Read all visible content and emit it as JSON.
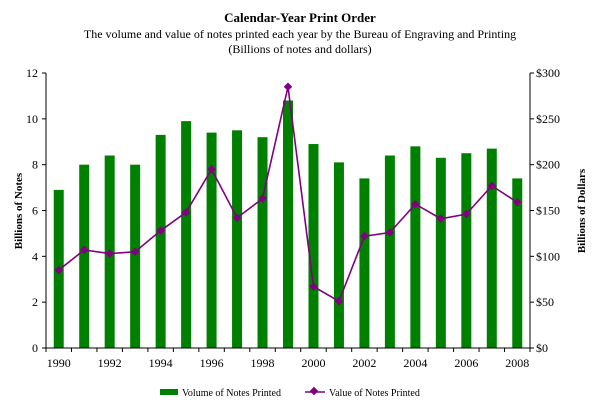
{
  "chart_data": {
    "type": "bar+line",
    "title": "Calendar-Year Print Order",
    "subtitle_lines": [
      "The volume and value of notes printed each year by the Bureau of Engraving and Printing",
      "(Billions of notes and dollars)"
    ],
    "ylabel_left": "Billions of Notes",
    "ylabel_right": "Billions of Dollars",
    "ylim_left": [
      0,
      12
    ],
    "ylim_right": [
      0,
      300
    ],
    "yticks_left": [
      "0",
      "2",
      "4",
      "6",
      "8",
      "10",
      "12"
    ],
    "yticks_right": [
      "$0",
      "$50",
      "$100",
      "$150",
      "$200",
      "$250",
      "$300"
    ],
    "x": [
      1990,
      1991,
      1992,
      1993,
      1994,
      1995,
      1996,
      1997,
      1998,
      1999,
      2000,
      2001,
      2002,
      2003,
      2004,
      2005,
      2006,
      2007,
      2008
    ],
    "xtick_labels": [
      "1990",
      "1992",
      "1994",
      "1996",
      "1998",
      "2000",
      "2002",
      "2004",
      "2006",
      "2008"
    ],
    "grid": false,
    "legend_position": "bottom",
    "series": [
      {
        "name": "Volume of Notes Printed",
        "kind": "bar",
        "axis": "left",
        "color": "#008000",
        "values": [
          6.9,
          8.0,
          8.4,
          8.0,
          9.3,
          9.9,
          9.4,
          9.5,
          9.2,
          10.8,
          8.9,
          8.1,
          7.4,
          8.4,
          8.8,
          8.3,
          8.5,
          8.7,
          7.4
        ]
      },
      {
        "name": "Value of Notes Printed",
        "kind": "line",
        "axis": "right",
        "color": "#800080",
        "values": [
          85,
          107,
          103,
          105,
          128,
          148,
          195,
          142,
          163,
          285,
          67,
          51,
          122,
          126,
          157,
          141,
          146,
          177,
          159
        ]
      }
    ]
  }
}
